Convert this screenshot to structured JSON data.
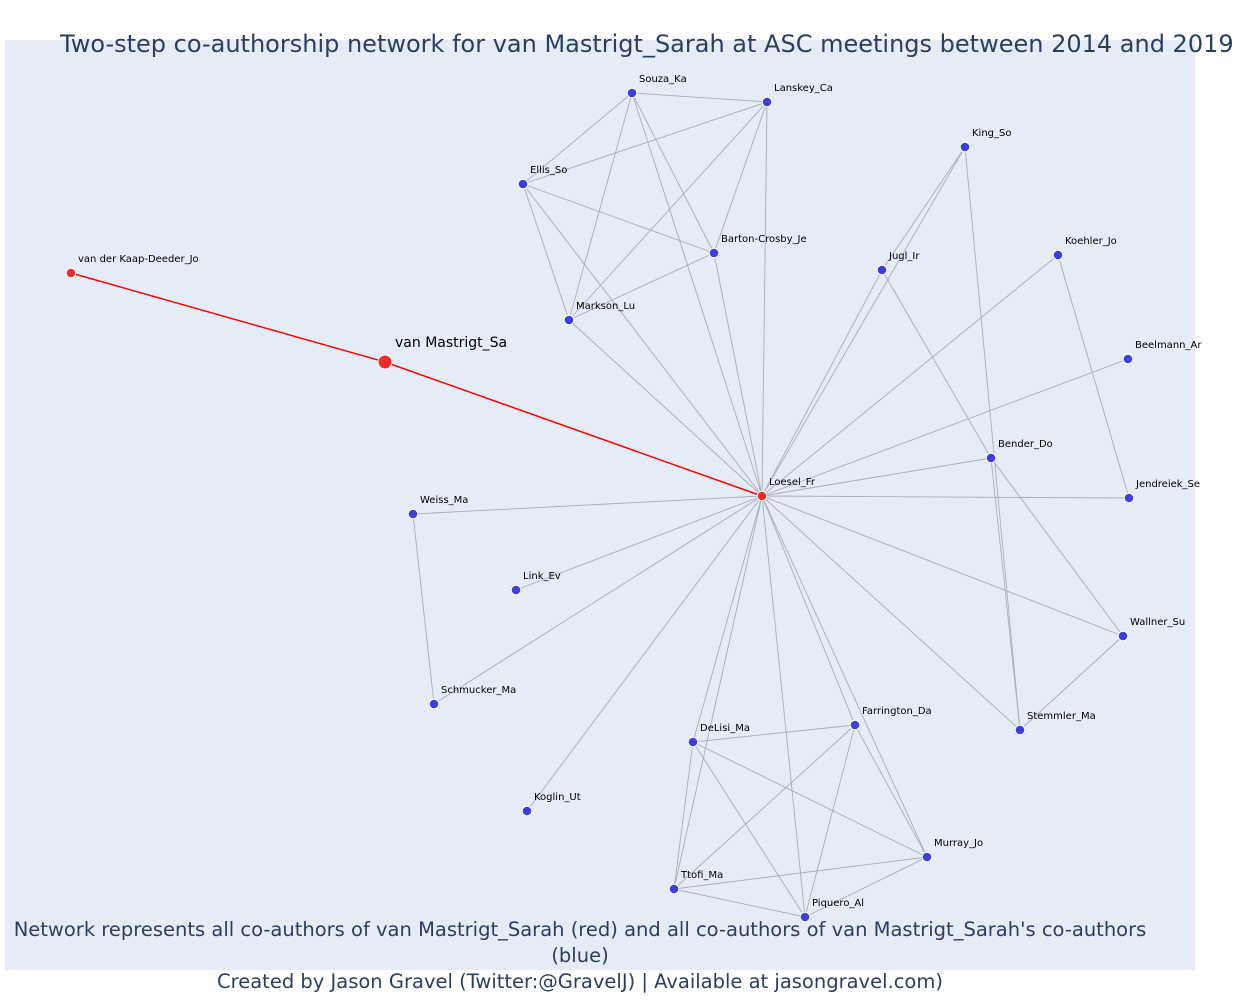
{
  "title": "Two-step co-authorship network for van Mastrigt_Sarah at ASC meetings between 2014 and 2019",
  "footer": {
    "line1": "Network represents all co-authors of van Mastrigt_Sarah (red) and all co-authors of van Mastrigt_Sarah's co-authors (blue)",
    "line2": "Created by Jason Gravel (Twitter:@GravelJ) | Available at jasongravel.com)"
  },
  "colors": {
    "background": "#e5ecf6",
    "co_author": "#ef2c2c",
    "second_step": "#3b3fe0",
    "focal_edge": "#ff0000",
    "edge": "#a9adc1",
    "text": "#2a3f5f"
  },
  "nodes": [
    {
      "id": "vanMastrigt",
      "label": "van Mastrigt_Sa",
      "group": "focal"
    },
    {
      "id": "vanDerKaap",
      "label": "van der Kaap-Deeder_Jo",
      "group": "co_author"
    },
    {
      "id": "Loesel",
      "label": "Loesel_Fr",
      "group": "co_author"
    },
    {
      "id": "Souza",
      "label": "Souza_Ka",
      "group": "second_step"
    },
    {
      "id": "Lanskey",
      "label": "Lanskey_Ca",
      "group": "second_step"
    },
    {
      "id": "Ellis",
      "label": "Ellis_So",
      "group": "second_step"
    },
    {
      "id": "Barton",
      "label": "Barton-Crosby_Je",
      "group": "second_step"
    },
    {
      "id": "Markson",
      "label": "Markson_Lu",
      "group": "second_step"
    },
    {
      "id": "King",
      "label": "King_So",
      "group": "second_step"
    },
    {
      "id": "Jugl",
      "label": "Jugl_Ir",
      "group": "second_step"
    },
    {
      "id": "Koehler",
      "label": "Koehler_Jo",
      "group": "second_step"
    },
    {
      "id": "Beelmann",
      "label": "Beelmann_Ar",
      "group": "second_step"
    },
    {
      "id": "Bender",
      "label": "Bender_Do",
      "group": "second_step"
    },
    {
      "id": "Jendreiek",
      "label": "Jendreiek_Se",
      "group": "second_step"
    },
    {
      "id": "Weiss",
      "label": "Weiss_Ma",
      "group": "second_step"
    },
    {
      "id": "Link",
      "label": "Link_Ev",
      "group": "second_step"
    },
    {
      "id": "Schmucker",
      "label": "Schmucker_Ma",
      "group": "second_step"
    },
    {
      "id": "Wallner",
      "label": "Wallner_Su",
      "group": "second_step"
    },
    {
      "id": "Stemmler",
      "label": "Stemmler_Ma",
      "group": "second_step"
    },
    {
      "id": "Farrington",
      "label": "Farrington_Da",
      "group": "second_step"
    },
    {
      "id": "DeLisi",
      "label": "DeLisi_Ma",
      "group": "second_step"
    },
    {
      "id": "Koglin",
      "label": "Koglin_Ut",
      "group": "second_step"
    },
    {
      "id": "Murray",
      "label": "Murray_Jo",
      "group": "second_step"
    },
    {
      "id": "Ttofi",
      "label": "Ttofi_Ma",
      "group": "second_step"
    },
    {
      "id": "Piquero",
      "label": "Piquero_Al",
      "group": "second_step"
    }
  ],
  "edges": [
    [
      "vanMastrigt",
      "vanDerKaap"
    ],
    [
      "vanMastrigt",
      "Loesel"
    ],
    [
      "Souza",
      "Lanskey"
    ],
    [
      "Souza",
      "Ellis"
    ],
    [
      "Souza",
      "Barton"
    ],
    [
      "Souza",
      "Markson"
    ],
    [
      "Souza",
      "Loesel"
    ],
    [
      "Lanskey",
      "Ellis"
    ],
    [
      "Lanskey",
      "Barton"
    ],
    [
      "Lanskey",
      "Markson"
    ],
    [
      "Lanskey",
      "Loesel"
    ],
    [
      "Ellis",
      "Barton"
    ],
    [
      "Ellis",
      "Markson"
    ],
    [
      "Ellis",
      "Loesel"
    ],
    [
      "Barton",
      "Markson"
    ],
    [
      "Barton",
      "Loesel"
    ],
    [
      "Markson",
      "Loesel"
    ],
    [
      "King",
      "Loesel"
    ],
    [
      "King",
      "Jugl"
    ],
    [
      "King",
      "Stemmler"
    ],
    [
      "Jugl",
      "Loesel"
    ],
    [
      "Jugl",
      "Bender"
    ],
    [
      "Koehler",
      "Loesel"
    ],
    [
      "Koehler",
      "Jendreiek"
    ],
    [
      "Beelmann",
      "Loesel"
    ],
    [
      "Bender",
      "Loesel"
    ],
    [
      "Bender",
      "Wallner"
    ],
    [
      "Bender",
      "Stemmler"
    ],
    [
      "Jendreiek",
      "Loesel"
    ],
    [
      "Weiss",
      "Loesel"
    ],
    [
      "Weiss",
      "Schmucker"
    ],
    [
      "Link",
      "Loesel"
    ],
    [
      "Schmucker",
      "Loesel"
    ],
    [
      "Wallner",
      "Loesel"
    ],
    [
      "Wallner",
      "Stemmler"
    ],
    [
      "Stemmler",
      "Loesel"
    ],
    [
      "Koglin",
      "Loesel"
    ],
    [
      "Farrington",
      "Loesel"
    ],
    [
      "Farrington",
      "DeLisi"
    ],
    [
      "Farrington",
      "Murray"
    ],
    [
      "Farrington",
      "Ttofi"
    ],
    [
      "Farrington",
      "Piquero"
    ],
    [
      "DeLisi",
      "Loesel"
    ],
    [
      "DeLisi",
      "Murray"
    ],
    [
      "DeLisi",
      "Ttofi"
    ],
    [
      "DeLisi",
      "Piquero"
    ],
    [
      "Murray",
      "Loesel"
    ],
    [
      "Murray",
      "Ttofi"
    ],
    [
      "Murray",
      "Piquero"
    ],
    [
      "Ttofi",
      "Loesel"
    ],
    [
      "Ttofi",
      "Piquero"
    ],
    [
      "Piquero",
      "Loesel"
    ]
  ]
}
